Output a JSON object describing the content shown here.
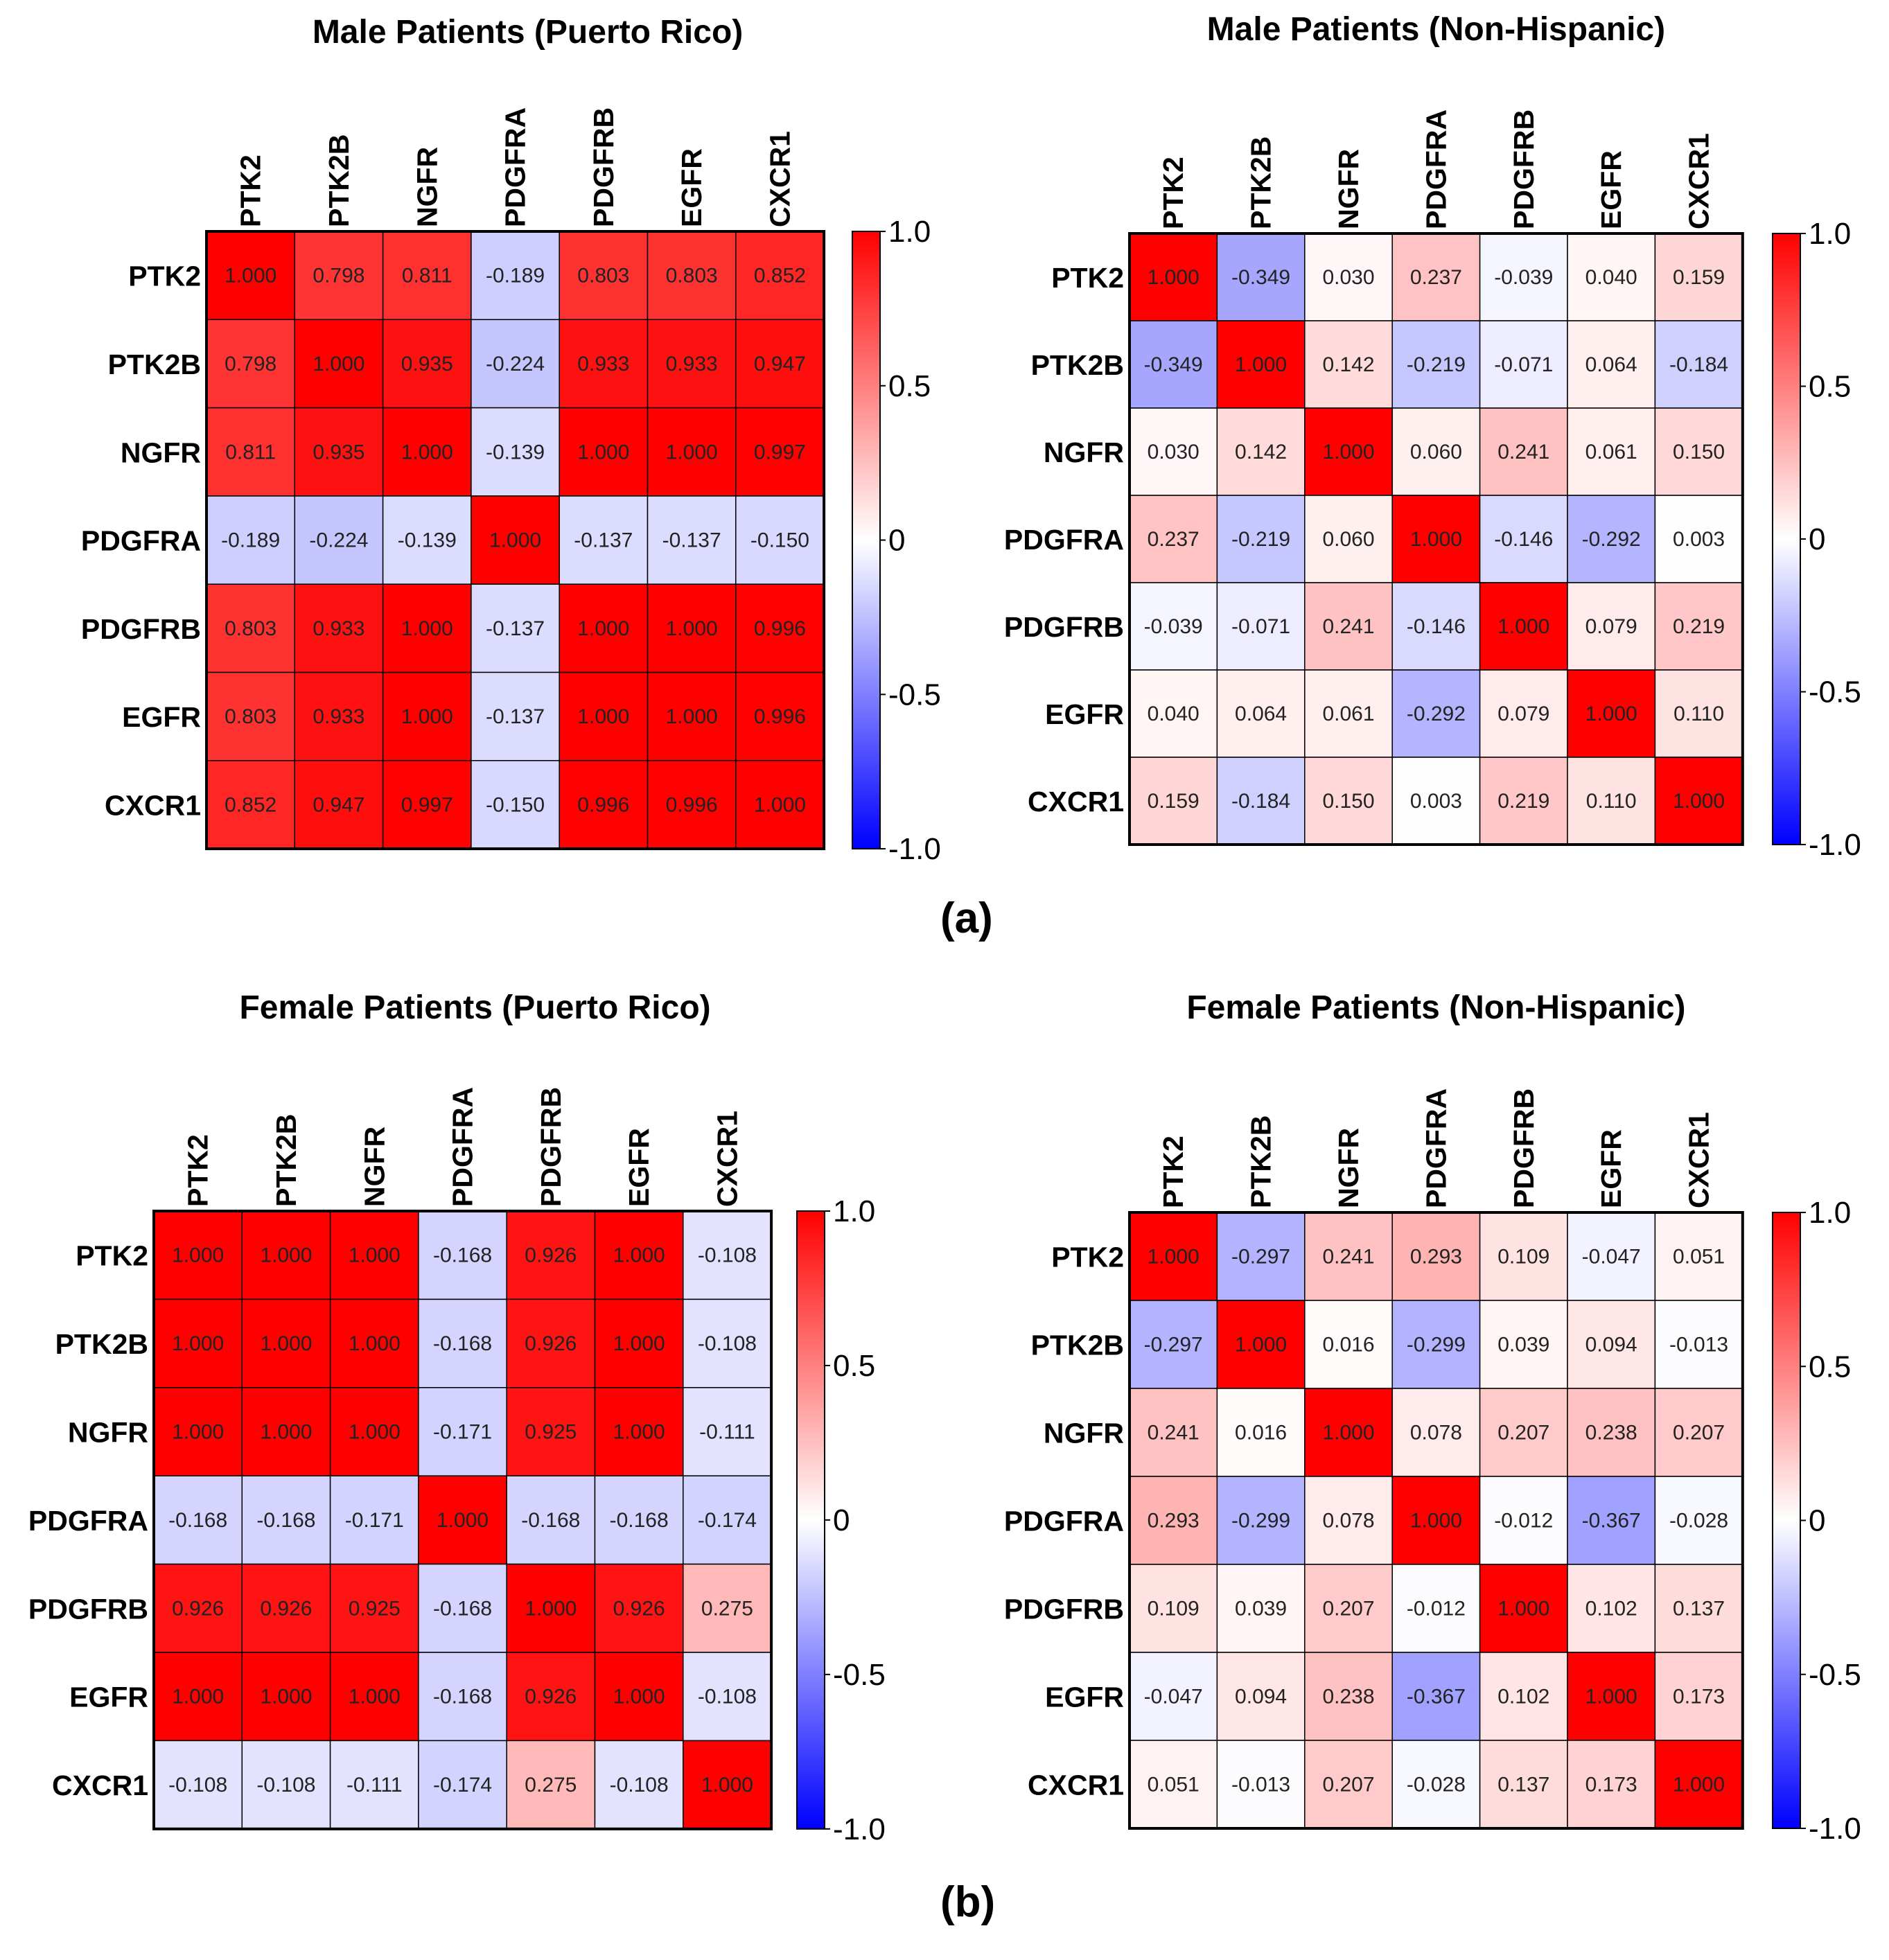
{
  "figure": {
    "label_a": "(a)",
    "label_b": "(b)"
  },
  "chart_data": [
    {
      "type": "heatmap",
      "title": "Male Patients (Puerto Rico)",
      "row_labels": [
        "PTK2",
        "PTK2B",
        "NGFR",
        "PDGFRA",
        "PDGFRB",
        "EGFR",
        "CXCR1"
      ],
      "col_labels": [
        "PTK2",
        "PTK2B",
        "NGFR",
        "PDGFRA",
        "PDGFRB",
        "EGFR",
        "CXCR1"
      ],
      "values": [
        [
          "1.000",
          "0.798",
          "0.811",
          "-0.189",
          "0.803",
          "0.803",
          "0.852"
        ],
        [
          "0.798",
          "1.000",
          "0.935",
          "-0.224",
          "0.933",
          "0.933",
          "0.947"
        ],
        [
          "0.811",
          "0.935",
          "1.000",
          "-0.139",
          "1.000",
          "1.000",
          "0.997"
        ],
        [
          "-0.189",
          "-0.224",
          "-0.139",
          "1.000",
          "-0.137",
          "-0.137",
          "-0.150"
        ],
        [
          "0.803",
          "0.933",
          "1.000",
          "-0.137",
          "1.000",
          "1.000",
          "0.996"
        ],
        [
          "0.803",
          "0.933",
          "1.000",
          "-0.137",
          "1.000",
          "1.000",
          "0.996"
        ],
        [
          "0.852",
          "0.947",
          "0.997",
          "-0.150",
          "0.996",
          "0.996",
          "1.000"
        ]
      ],
      "colorbar": {
        "range": [
          -1,
          1
        ],
        "ticks": [
          "1.0",
          "0.5",
          "0",
          "-0.5",
          "-1.0"
        ]
      },
      "colors": {
        "neg": "#0000ff",
        "mid": "#ffffff",
        "pos": "#ff0000"
      }
    },
    {
      "type": "heatmap",
      "title": "Male Patients (Non-Hispanic)",
      "row_labels": [
        "PTK2",
        "PTK2B",
        "NGFR",
        "PDGFRA",
        "PDGFRB",
        "EGFR",
        "CXCR1"
      ],
      "col_labels": [
        "PTK2",
        "PTK2B",
        "NGFR",
        "PDGFRA",
        "PDGFRB",
        "EGFR",
        "CXCR1"
      ],
      "values": [
        [
          "1.000",
          "-0.349",
          "0.030",
          "0.237",
          "-0.039",
          "0.040",
          "0.159"
        ],
        [
          "-0.349",
          "1.000",
          "0.142",
          "-0.219",
          "-0.071",
          "0.064",
          "-0.184"
        ],
        [
          "0.030",
          "0.142",
          "1.000",
          "0.060",
          "0.241",
          "0.061",
          "0.150"
        ],
        [
          "0.237",
          "-0.219",
          "0.060",
          "1.000",
          "-0.146",
          "-0.292",
          "0.003"
        ],
        [
          "-0.039",
          "-0.071",
          "0.241",
          "-0.146",
          "1.000",
          "0.079",
          "0.219"
        ],
        [
          "0.040",
          "0.064",
          "0.061",
          "-0.292",
          "0.079",
          "1.000",
          "0.110"
        ],
        [
          "0.159",
          "-0.184",
          "0.150",
          "0.003",
          "0.219",
          "0.110",
          "1.000"
        ]
      ],
      "colorbar": {
        "range": [
          -1,
          1
        ],
        "ticks": [
          "1.0",
          "0.5",
          "0",
          "-0.5",
          "-1.0"
        ]
      },
      "colors": {
        "neg": "#0000ff",
        "mid": "#ffffff",
        "pos": "#ff0000"
      }
    },
    {
      "type": "heatmap",
      "title": "Female Patients (Puerto Rico)",
      "row_labels": [
        "PTK2",
        "PTK2B",
        "NGFR",
        "PDGFRA",
        "PDGFRB",
        "EGFR",
        "CXCR1"
      ],
      "col_labels": [
        "PTK2",
        "PTK2B",
        "NGFR",
        "PDGFRA",
        "PDGFRB",
        "EGFR",
        "CXCR1"
      ],
      "values": [
        [
          "1.000",
          "1.000",
          "1.000",
          "-0.168",
          "0.926",
          "1.000",
          "-0.108"
        ],
        [
          "1.000",
          "1.000",
          "1.000",
          "-0.168",
          "0.926",
          "1.000",
          "-0.108"
        ],
        [
          "1.000",
          "1.000",
          "1.000",
          "-0.171",
          "0.925",
          "1.000",
          "-0.111"
        ],
        [
          "-0.168",
          "-0.168",
          "-0.171",
          "1.000",
          "-0.168",
          "-0.168",
          "-0.174"
        ],
        [
          "0.926",
          "0.926",
          "0.925",
          "-0.168",
          "1.000",
          "0.926",
          "0.275"
        ],
        [
          "1.000",
          "1.000",
          "1.000",
          "-0.168",
          "0.926",
          "1.000",
          "-0.108"
        ],
        [
          "-0.108",
          "-0.108",
          "-0.111",
          "-0.174",
          "0.275",
          "-0.108",
          "1.000"
        ]
      ],
      "colorbar": {
        "range": [
          -1,
          1
        ],
        "ticks": [
          "1.0",
          "0.5",
          "0",
          "-0.5",
          "-1.0"
        ]
      },
      "colors": {
        "neg": "#0000ff",
        "mid": "#ffffff",
        "pos": "#ff0000"
      }
    },
    {
      "type": "heatmap",
      "title": "Female Patients (Non-Hispanic)",
      "row_labels": [
        "PTK2",
        "PTK2B",
        "NGFR",
        "PDGFRA",
        "PDGFRB",
        "EGFR",
        "CXCR1"
      ],
      "col_labels": [
        "PTK2",
        "PTK2B",
        "NGFR",
        "PDGFRA",
        "PDGFRB",
        "EGFR",
        "CXCR1"
      ],
      "values": [
        [
          "1.000",
          "-0.297",
          "0.241",
          "0.293",
          "0.109",
          "-0.047",
          "0.051"
        ],
        [
          "-0.297",
          "1.000",
          "0.016",
          "-0.299",
          "0.039",
          "0.094",
          "-0.013"
        ],
        [
          "0.241",
          "0.016",
          "1.000",
          "0.078",
          "0.207",
          "0.238",
          "0.207"
        ],
        [
          "0.293",
          "-0.299",
          "0.078",
          "1.000",
          "-0.012",
          "-0.367",
          "-0.028"
        ],
        [
          "0.109",
          "0.039",
          "0.207",
          "-0.012",
          "1.000",
          "0.102",
          "0.137"
        ],
        [
          "-0.047",
          "0.094",
          "0.238",
          "-0.367",
          "0.102",
          "1.000",
          "0.173"
        ],
        [
          "0.051",
          "-0.013",
          "0.207",
          "-0.028",
          "0.137",
          "0.173",
          "1.000"
        ]
      ],
      "colorbar": {
        "range": [
          -1,
          1
        ],
        "ticks": [
          "1.0",
          "0.5",
          "0",
          "-0.5",
          "-1.0"
        ]
      },
      "colors": {
        "neg": "#0000ff",
        "mid": "#ffffff",
        "pos": "#ff0000"
      }
    }
  ]
}
